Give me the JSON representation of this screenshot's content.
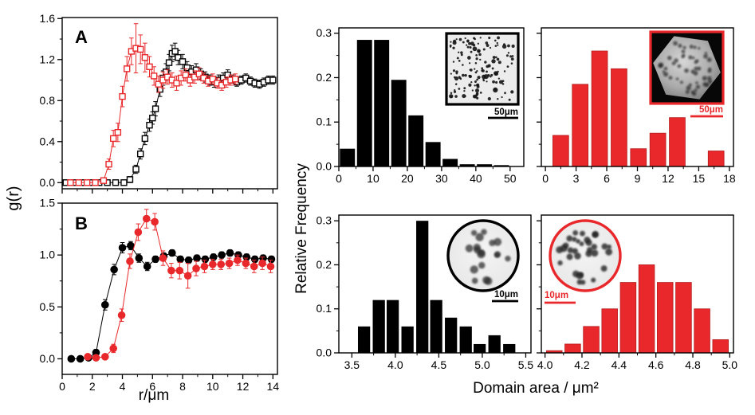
{
  "labels": {
    "panel_a": "A",
    "panel_b": "B",
    "gr_ylabel": "g(r)",
    "r_xlabel": "r/μm",
    "hist_ylabel": "Relative Frequency",
    "hist_xlabel": "Domain area / μm²"
  },
  "colors": {
    "accent_red": "#e8282b",
    "black": "#000000"
  },
  "chart_data": [
    {
      "id": "panel_a",
      "type": "line-scatter",
      "title": "Pair correlation function g(r), panel A (open squares)",
      "xlim": [
        0,
        14.3
      ],
      "ylim": [
        -0.06,
        1.61
      ],
      "xticks": {
        "values": [
          0,
          2,
          4,
          6,
          8,
          10,
          12,
          14
        ],
        "labels": null
      },
      "yticks": {
        "values": [
          0,
          0.4,
          0.8,
          1.2,
          1.6
        ],
        "labels": [
          "0.0",
          "0.4",
          "0.8",
          "1.2",
          "1.6"
        ]
      },
      "minor_x": 1,
      "minor_y": 0.2,
      "series": [
        {
          "name": "black-open-squares",
          "color": "#000000",
          "marker": "square-open",
          "points": [
            [
              0.25,
              0,
              0
            ],
            [
              0.8,
              0,
              0
            ],
            [
              1.35,
              0,
              0
            ],
            [
              1.9,
              0,
              0
            ],
            [
              2.45,
              0,
              0
            ],
            [
              3.0,
              0,
              0
            ],
            [
              3.55,
              0,
              0
            ],
            [
              4.1,
              0,
              0.02
            ],
            [
              4.5,
              0.03,
              0.03
            ],
            [
              4.9,
              0.13,
              0.04
            ],
            [
              5.2,
              0.28,
              0.05
            ],
            [
              5.5,
              0.43,
              0.06
            ],
            [
              5.8,
              0.56,
              0.06
            ],
            [
              6.0,
              0.63,
              0.06
            ],
            [
              6.2,
              0.72,
              0.07
            ],
            [
              6.5,
              0.91,
              0.07
            ],
            [
              6.7,
              1.02,
              0.07
            ],
            [
              6.9,
              1.08,
              0.08
            ],
            [
              7.1,
              1.17,
              0.08
            ],
            [
              7.3,
              1.26,
              0.08
            ],
            [
              7.5,
              1.28,
              0.08
            ],
            [
              7.7,
              1.22,
              0.07
            ],
            [
              8.0,
              1.18,
              0.07
            ],
            [
              8.3,
              1.12,
              0.06
            ],
            [
              8.6,
              1.08,
              0.06
            ],
            [
              8.9,
              1.1,
              0.06
            ],
            [
              9.2,
              1.06,
              0.05
            ],
            [
              9.5,
              1.03,
              0.05
            ],
            [
              9.8,
              1.0,
              0.05
            ],
            [
              10.1,
              0.98,
              0.05
            ],
            [
              10.4,
              1.0,
              0.05
            ],
            [
              10.7,
              1.02,
              0.05
            ],
            [
              11.0,
              1.05,
              0.05
            ],
            [
              11.3,
              1.01,
              0.04
            ],
            [
              11.6,
              0.98,
              0.04
            ],
            [
              11.9,
              1.0,
              0.04
            ],
            [
              12.2,
              1.02,
              0.04
            ],
            [
              12.5,
              0.99,
              0.04
            ],
            [
              12.8,
              0.97,
              0.04
            ],
            [
              13.1,
              0.96,
              0.04
            ],
            [
              13.4,
              0.98,
              0.04
            ],
            [
              13.7,
              1.0,
              0.04
            ],
            [
              14.0,
              1.0,
              0.04
            ]
          ]
        },
        {
          "name": "red-open-squares",
          "color": "#e8282b",
          "marker": "square-open",
          "points": [
            [
              0.55,
              0,
              0
            ],
            [
              1.1,
              0,
              0
            ],
            [
              1.65,
              0,
              0
            ],
            [
              2.2,
              0,
              0
            ],
            [
              2.75,
              0.02,
              0.02
            ],
            [
              3.1,
              0.18,
              0.05
            ],
            [
              3.4,
              0.43,
              0.08
            ],
            [
              3.7,
              0.49,
              0.09
            ],
            [
              4.0,
              0.84,
              0.1
            ],
            [
              4.3,
              1.11,
              0.12
            ],
            [
              4.6,
              1.28,
              0.13
            ],
            [
              4.9,
              1.31,
              0.24
            ],
            [
              5.2,
              1.3,
              0.14
            ],
            [
              5.5,
              1.22,
              0.14
            ],
            [
              5.8,
              1.13,
              0.1
            ],
            [
              6.1,
              1.04,
              0.09
            ],
            [
              6.4,
              0.96,
              0.08
            ],
            [
              6.7,
              1.0,
              0.08
            ],
            [
              7.0,
              1.03,
              0.07
            ],
            [
              7.3,
              1.0,
              0.07
            ],
            [
              7.6,
              0.97,
              0.07
            ],
            [
              7.9,
              1.02,
              0.07
            ],
            [
              8.2,
              1.05,
              0.06
            ],
            [
              8.5,
              1.0,
              0.06
            ],
            [
              8.8,
              1.03,
              0.06
            ],
            [
              9.1,
              1.06,
              0.06
            ],
            [
              9.4,
              1.02,
              0.05
            ],
            [
              9.7,
              0.99,
              0.05
            ],
            [
              10.0,
              1.01,
              0.05
            ],
            [
              10.3,
              0.97,
              0.05
            ],
            [
              10.6,
              0.95,
              0.05
            ],
            [
              10.9,
              0.98,
              0.05
            ],
            [
              11.2,
              1.0,
              0.05
            ],
            [
              11.5,
              1.01,
              0.05
            ]
          ]
        }
      ]
    },
    {
      "id": "panel_b",
      "type": "line-scatter",
      "title": "Pair correlation function g(r), panel B (filled circles)",
      "xlim": [
        0,
        14.3
      ],
      "ylim": [
        -0.15,
        1.5
      ],
      "xticks": {
        "values": [
          0,
          2,
          4,
          6,
          8,
          10,
          12,
          14
        ],
        "labels": [
          "0",
          "2",
          "4",
          "6",
          "8",
          "10",
          "12",
          "14"
        ]
      },
      "yticks": {
        "values": [
          0,
          0.5,
          1.0,
          1.5
        ],
        "labels": [
          "0.0",
          "0.5",
          "1.0",
          "1.5"
        ]
      },
      "minor_x": 1,
      "minor_y": 0.25,
      "series": [
        {
          "name": "black-filled-circles",
          "color": "#000000",
          "marker": "circle-filled",
          "points": [
            [
              0.6,
              0,
              0
            ],
            [
              1.2,
              0,
              0
            ],
            [
              1.75,
              0.01,
              0.02
            ],
            [
              2.25,
              0.06,
              0.03
            ],
            [
              2.85,
              0.52,
              0.05
            ],
            [
              3.45,
              0.86,
              0.05
            ],
            [
              4.0,
              1.07,
              0.05
            ],
            [
              4.55,
              1.09,
              0.04
            ],
            [
              5.1,
              0.97,
              0.04
            ],
            [
              5.65,
              0.89,
              0.04
            ],
            [
              6.2,
              0.96,
              0.03
            ],
            [
              6.75,
              0.99,
              0.03
            ],
            [
              7.3,
              1.02,
              0.03
            ],
            [
              7.85,
              0.96,
              0.03
            ],
            [
              8.4,
              0.95,
              0.03
            ],
            [
              8.95,
              0.97,
              0.03
            ],
            [
              9.5,
              0.96,
              0.03
            ],
            [
              10.05,
              0.98,
              0.03
            ],
            [
              10.6,
              1.0,
              0.03
            ],
            [
              11.15,
              1.02,
              0.03
            ],
            [
              11.7,
              1.0,
              0.03
            ],
            [
              12.25,
              0.98,
              0.03
            ],
            [
              12.8,
              0.96,
              0.03
            ],
            [
              13.35,
              0.97,
              0.03
            ],
            [
              13.9,
              0.96,
              0.03
            ]
          ]
        },
        {
          "name": "red-filled-circles",
          "color": "#e8282b",
          "marker": "circle-filled",
          "points": [
            [
              1.7,
              0.02,
              0.02
            ],
            [
              2.25,
              0.01,
              0.02
            ],
            [
              2.85,
              0.02,
              0.02
            ],
            [
              3.4,
              0.1,
              0.04
            ],
            [
              3.95,
              0.42,
              0.06
            ],
            [
              4.5,
              0.94,
              0.07
            ],
            [
              5.05,
              1.22,
              0.08
            ],
            [
              5.6,
              1.35,
              0.09
            ],
            [
              6.15,
              1.32,
              0.08
            ],
            [
              6.7,
              0.97,
              0.07
            ],
            [
              7.25,
              0.85,
              0.07
            ],
            [
              7.8,
              0.85,
              0.08
            ],
            [
              8.35,
              0.8,
              0.12
            ],
            [
              8.9,
              0.87,
              0.07
            ],
            [
              9.45,
              0.89,
              0.06
            ],
            [
              10.0,
              0.91,
              0.05
            ],
            [
              10.55,
              0.91,
              0.05
            ],
            [
              11.1,
              0.92,
              0.05
            ],
            [
              11.65,
              0.95,
              0.05
            ],
            [
              12.2,
              0.92,
              0.05
            ],
            [
              12.75,
              0.89,
              0.06
            ],
            [
              13.3,
              0.92,
              0.06
            ],
            [
              13.85,
              0.89,
              0.06
            ]
          ]
        }
      ]
    },
    {
      "id": "hist_large_black",
      "type": "bar",
      "title": "Domain area distribution, black sample (large domains)",
      "bar_color": "#000000",
      "xlim": [
        0,
        54
      ],
      "ylim": [
        0,
        0.312
      ],
      "xticks": {
        "values": [
          0,
          10,
          20,
          30,
          40,
          50
        ],
        "labels": [
          "0",
          "10",
          "20",
          "30",
          "40",
          "50"
        ]
      },
      "yticks": {
        "values": [
          0,
          0.1,
          0.2,
          0.3
        ],
        "labels": [
          "0.0",
          "0.1",
          "0.2",
          "0.3"
        ]
      },
      "minor_x": 5,
      "minor_y": 0.05,
      "bin_centers": [
        2.5,
        7.5,
        12.5,
        17.5,
        22.5,
        27.5,
        32.5,
        37.5,
        42.5,
        47.5
      ],
      "values": [
        0.04,
        0.285,
        0.285,
        0.195,
        0.115,
        0.055,
        0.017,
        0.005,
        0.005,
        0.003
      ],
      "bar_width": 4.4,
      "inset": {
        "shape": "square",
        "border_color": "#000000",
        "scale_bar_label": "50μm",
        "image": "micrograph-dark-domains"
      }
    },
    {
      "id": "hist_large_red",
      "type": "bar",
      "title": "Domain area distribution, red sample (hexagonal crystal)",
      "bar_color": "#e8282b",
      "xlim": [
        -0.4,
        18.4
      ],
      "ylim": [
        0,
        0.312
      ],
      "xticks": {
        "values": [
          0,
          3,
          6,
          9,
          12,
          15,
          18
        ],
        "labels": [
          "0",
          "3",
          "6",
          "9",
          "12",
          "15",
          "18"
        ]
      },
      "yticks": {
        "values": [
          0,
          0.1,
          0.2,
          0.3
        ],
        "labels": null
      },
      "minor_x": 1.5,
      "minor_y": 0.05,
      "bin_centers": [
        1.5,
        3.4,
        5.3,
        7.2,
        9.1,
        11.0,
        12.9,
        16.7
      ],
      "values": [
        0.07,
        0.185,
        0.26,
        0.22,
        0.04,
        0.075,
        0.11,
        0.035
      ],
      "bar_width": 1.55,
      "inset": {
        "shape": "square",
        "border_color": "#e8282b",
        "scale_bar_label": "50μm",
        "image": "hexagonal-crystal-micrograph"
      }
    },
    {
      "id": "hist_small_black",
      "type": "bar",
      "title": "Domain area distribution, black sample (small domains)",
      "bar_color": "#000000",
      "xlim": [
        3.35,
        5.56
      ],
      "ylim": [
        0,
        0.313
      ],
      "xticks": {
        "values": [
          3.5,
          4.0,
          4.5,
          5.0,
          5.5
        ],
        "labels": [
          "3.5",
          "4.0",
          "4.5",
          "5.0",
          "5.5"
        ]
      },
      "yticks": {
        "values": [
          0,
          0.1,
          0.2,
          0.3
        ],
        "labels": [
          "0.0",
          "0.1",
          "0.2",
          "0.3"
        ]
      },
      "minor_x": 0.25,
      "minor_y": 0.05,
      "bin_centers": [
        3.64,
        3.81,
        3.97,
        4.14,
        4.31,
        4.47,
        4.64,
        4.81,
        4.97,
        5.14,
        5.31
      ],
      "values": [
        0.06,
        0.12,
        0.12,
        0.06,
        0.3,
        0.12,
        0.08,
        0.06,
        0.02,
        0.04,
        0.02
      ],
      "bar_width": 0.14,
      "inset": {
        "shape": "circle",
        "border_color": "#000000",
        "scale_bar_label": "10μm",
        "image": "vesicle-micrograph-sparse-domains"
      }
    },
    {
      "id": "hist_small_red",
      "type": "bar",
      "title": "Domain area distribution, red sample (small domains)",
      "bar_color": "#e8282b",
      "xlim": [
        3.98,
        5.02
      ],
      "ylim": [
        0,
        0.313
      ],
      "xticks": {
        "values": [
          4.0,
          4.2,
          4.4,
          4.6,
          4.8,
          5.0
        ],
        "labels": [
          "4.0",
          "4.2",
          "4.4",
          "4.6",
          "4.8",
          "5.0"
        ]
      },
      "yticks": {
        "values": [
          0,
          0.1,
          0.2,
          0.3
        ],
        "labels": null
      },
      "minor_x": 0.1,
      "minor_y": 0.05,
      "bin_centers": [
        4.05,
        4.15,
        4.25,
        4.35,
        4.45,
        4.55,
        4.65,
        4.75,
        4.85,
        4.95
      ],
      "values": [
        0.005,
        0.02,
        0.06,
        0.1,
        0.16,
        0.2,
        0.16,
        0.16,
        0.1,
        0.03
      ],
      "bar_width": 0.085,
      "inset": {
        "shape": "circle",
        "border_color": "#e8282b",
        "scale_bar_label": "10μm",
        "image": "vesicle-micrograph-dense-domains"
      }
    }
  ]
}
